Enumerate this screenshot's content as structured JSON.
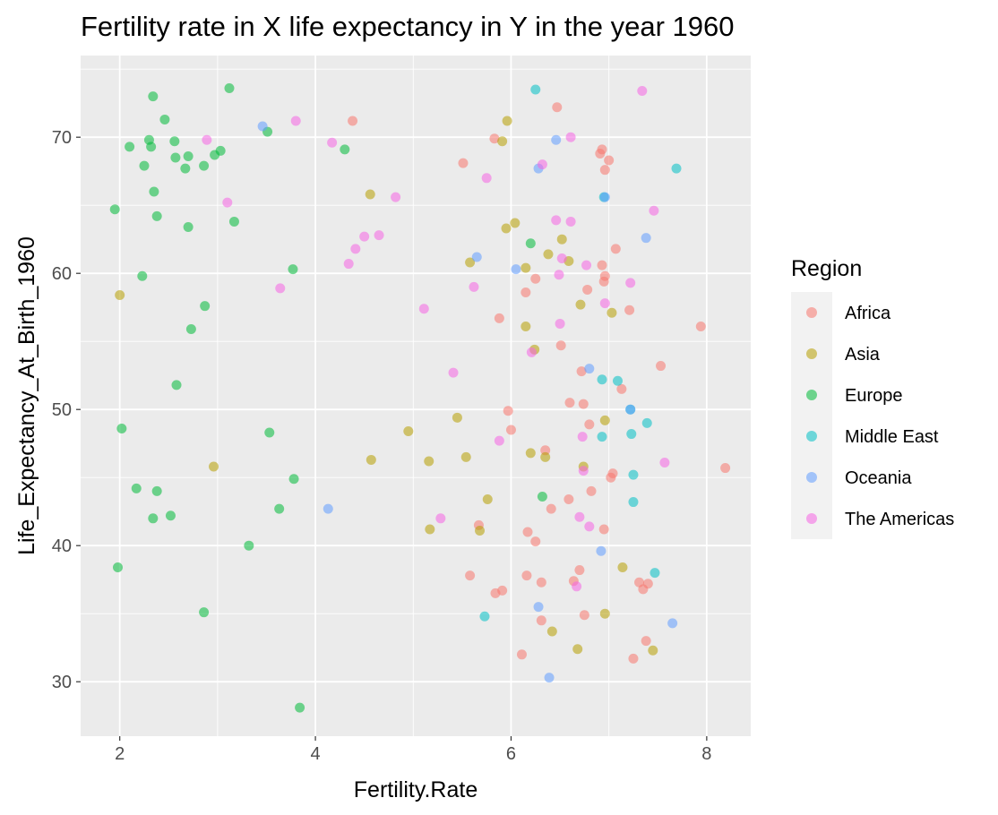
{
  "chart_data": {
    "type": "scatter",
    "title": "Fertility rate in X life expectancy in Y in the year 1960",
    "xlabel": "Fertility.Rate",
    "ylabel": "Life_Expectancy_At_Birth_1960",
    "xlim": [
      1.6,
      8.45
    ],
    "ylim": [
      26.0,
      76.0
    ],
    "x_ticks": [
      2,
      4,
      6,
      8
    ],
    "y_ticks": [
      30,
      40,
      50,
      60,
      70
    ],
    "grid": true,
    "legend": {
      "title": "Region",
      "position": "right"
    },
    "series": [
      {
        "name": "Africa",
        "color": "#F8766D",
        "points": [
          [
            4.38,
            71.2
          ],
          [
            6.47,
            72.2
          ],
          [
            5.83,
            69.9
          ],
          [
            5.51,
            68.1
          ],
          [
            6.93,
            69.1
          ],
          [
            6.91,
            68.8
          ],
          [
            7.0,
            68.3
          ],
          [
            6.96,
            67.6
          ],
          [
            6.93,
            60.6
          ],
          [
            6.96,
            59.8
          ],
          [
            6.95,
            59.4
          ],
          [
            6.78,
            58.8
          ],
          [
            6.25,
            59.6
          ],
          [
            6.15,
            58.6
          ],
          [
            7.07,
            61.8
          ],
          [
            7.21,
            57.3
          ],
          [
            5.88,
            56.7
          ],
          [
            6.51,
            54.7
          ],
          [
            7.94,
            56.1
          ],
          [
            7.53,
            53.2
          ],
          [
            6.72,
            52.8
          ],
          [
            7.13,
            51.5
          ],
          [
            6.6,
            50.5
          ],
          [
            6.74,
            50.4
          ],
          [
            5.97,
            49.9
          ],
          [
            6.0,
            48.5
          ],
          [
            6.8,
            48.9
          ],
          [
            6.35,
            47.0
          ],
          [
            7.02,
            45.0
          ],
          [
            7.04,
            45.3
          ],
          [
            8.19,
            45.7
          ],
          [
            6.59,
            43.4
          ],
          [
            6.82,
            44.0
          ],
          [
            6.41,
            42.7
          ],
          [
            5.67,
            41.5
          ],
          [
            6.17,
            41.0
          ],
          [
            6.25,
            40.3
          ],
          [
            6.95,
            41.2
          ],
          [
            6.7,
            38.2
          ],
          [
            5.58,
            37.8
          ],
          [
            6.16,
            37.8
          ],
          [
            6.64,
            37.4
          ],
          [
            5.84,
            36.5
          ],
          [
            5.91,
            36.7
          ],
          [
            6.31,
            37.3
          ],
          [
            7.31,
            37.3
          ],
          [
            7.35,
            36.8
          ],
          [
            7.4,
            37.2
          ],
          [
            6.75,
            34.9
          ],
          [
            6.31,
            34.5
          ],
          [
            7.38,
            33.0
          ],
          [
            6.11,
            32.0
          ],
          [
            7.25,
            31.7
          ]
        ]
      },
      {
        "name": "Asia",
        "color": "#B79F00",
        "points": [
          [
            5.96,
            71.2
          ],
          [
            5.91,
            69.7
          ],
          [
            4.56,
            65.8
          ],
          [
            5.95,
            63.3
          ],
          [
            6.04,
            63.7
          ],
          [
            6.52,
            62.5
          ],
          [
            6.38,
            61.4
          ],
          [
            5.58,
            60.8
          ],
          [
            6.15,
            60.4
          ],
          [
            6.59,
            60.9
          ],
          [
            6.71,
            57.7
          ],
          [
            7.03,
            57.1
          ],
          [
            6.15,
            56.1
          ],
          [
            6.24,
            54.4
          ],
          [
            6.96,
            49.2
          ],
          [
            5.45,
            49.4
          ],
          [
            4.95,
            48.4
          ],
          [
            6.2,
            46.8
          ],
          [
            6.35,
            46.5
          ],
          [
            4.57,
            46.3
          ],
          [
            5.16,
            46.2
          ],
          [
            5.54,
            46.5
          ],
          [
            6.74,
            45.8
          ],
          [
            5.76,
            43.4
          ],
          [
            5.17,
            41.2
          ],
          [
            5.68,
            41.1
          ],
          [
            7.14,
            38.4
          ],
          [
            6.96,
            35.0
          ],
          [
            6.42,
            33.7
          ],
          [
            6.68,
            32.4
          ],
          [
            7.45,
            32.3
          ],
          [
            2.96,
            45.8
          ],
          [
            2.0,
            58.4
          ]
        ]
      },
      {
        "name": "Europe",
        "color": "#00BA38",
        "points": [
          [
            2.34,
            73.0
          ],
          [
            3.12,
            73.6
          ],
          [
            2.46,
            71.3
          ],
          [
            2.1,
            69.3
          ],
          [
            2.3,
            69.8
          ],
          [
            2.32,
            69.3
          ],
          [
            2.56,
            69.7
          ],
          [
            3.51,
            70.4
          ],
          [
            4.3,
            69.1
          ],
          [
            3.03,
            69.0
          ],
          [
            2.97,
            68.7
          ],
          [
            2.57,
            68.5
          ],
          [
            2.7,
            68.6
          ],
          [
            2.25,
            67.9
          ],
          [
            2.67,
            67.7
          ],
          [
            2.86,
            67.9
          ],
          [
            2.35,
            66.0
          ],
          [
            1.95,
            64.7
          ],
          [
            2.38,
            64.2
          ],
          [
            2.7,
            63.4
          ],
          [
            3.17,
            63.8
          ],
          [
            6.2,
            62.2
          ],
          [
            2.23,
            59.8
          ],
          [
            3.77,
            60.3
          ],
          [
            2.87,
            57.6
          ],
          [
            2.73,
            55.9
          ],
          [
            2.58,
            51.8
          ],
          [
            2.02,
            48.6
          ],
          [
            3.53,
            48.3
          ],
          [
            2.17,
            44.2
          ],
          [
            2.38,
            44.0
          ],
          [
            3.78,
            44.9
          ],
          [
            6.32,
            43.6
          ],
          [
            3.63,
            42.7
          ],
          [
            2.52,
            42.2
          ],
          [
            2.34,
            42.0
          ],
          [
            3.32,
            40.0
          ],
          [
            1.98,
            38.4
          ],
          [
            2.86,
            35.1
          ],
          [
            3.84,
            28.1
          ]
        ]
      },
      {
        "name": "Middle East",
        "color": "#00BFC4",
        "points": [
          [
            6.25,
            73.5
          ],
          [
            7.69,
            67.7
          ],
          [
            6.95,
            65.6
          ],
          [
            7.09,
            52.1
          ],
          [
            6.93,
            52.2
          ],
          [
            7.22,
            50.0
          ],
          [
            7.39,
            49.0
          ],
          [
            6.93,
            48.0
          ],
          [
            7.23,
            48.2
          ],
          [
            7.25,
            45.2
          ],
          [
            7.25,
            43.2
          ],
          [
            7.47,
            38.0
          ],
          [
            5.73,
            34.8
          ]
        ]
      },
      {
        "name": "Oceania",
        "color": "#619CFF",
        "points": [
          [
            3.46,
            70.8
          ],
          [
            6.46,
            69.8
          ],
          [
            6.28,
            67.7
          ],
          [
            6.96,
            65.6
          ],
          [
            7.38,
            62.6
          ],
          [
            5.65,
            61.2
          ],
          [
            6.05,
            60.3
          ],
          [
            6.8,
            53.0
          ],
          [
            7.22,
            50.0
          ],
          [
            4.13,
            42.7
          ],
          [
            6.92,
            39.6
          ],
          [
            6.28,
            35.5
          ],
          [
            7.65,
            34.3
          ],
          [
            6.39,
            30.3
          ]
        ]
      },
      {
        "name": "The Americas",
        "color": "#F564E3",
        "points": [
          [
            7.34,
            73.4
          ],
          [
            3.8,
            71.2
          ],
          [
            4.17,
            69.6
          ],
          [
            2.89,
            69.8
          ],
          [
            6.61,
            70.0
          ],
          [
            5.75,
            67.0
          ],
          [
            6.32,
            68.0
          ],
          [
            4.82,
            65.6
          ],
          [
            3.1,
            65.2
          ],
          [
            7.46,
            64.6
          ],
          [
            6.46,
            63.9
          ],
          [
            6.61,
            63.8
          ],
          [
            4.65,
            62.8
          ],
          [
            4.5,
            62.7
          ],
          [
            4.41,
            61.8
          ],
          [
            4.34,
            60.7
          ],
          [
            6.52,
            61.1
          ],
          [
            6.77,
            60.6
          ],
          [
            6.49,
            59.9
          ],
          [
            7.22,
            59.3
          ],
          [
            5.62,
            59.0
          ],
          [
            3.64,
            58.9
          ],
          [
            5.11,
            57.4
          ],
          [
            6.96,
            57.8
          ],
          [
            6.5,
            56.3
          ],
          [
            6.21,
            54.2
          ],
          [
            5.41,
            52.7
          ],
          [
            6.73,
            48.0
          ],
          [
            5.88,
            47.7
          ],
          [
            7.57,
            46.1
          ],
          [
            6.74,
            45.5
          ],
          [
            5.28,
            42.0
          ],
          [
            6.7,
            42.1
          ],
          [
            6.8,
            41.4
          ],
          [
            6.67,
            37.0
          ]
        ]
      }
    ]
  }
}
